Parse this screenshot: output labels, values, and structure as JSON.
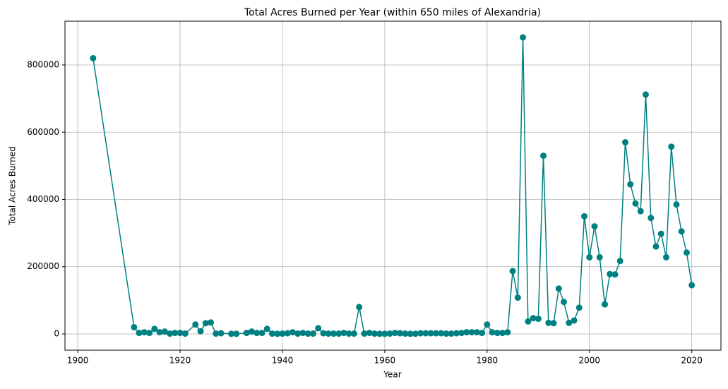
{
  "chart_data": {
    "type": "line",
    "title": "Total Acres Burned per Year (within 650 miles of Alexandria)",
    "x_label": "Year",
    "y_label": "Total Acres Burned",
    "x": [
      1903,
      1911,
      1912,
      1913,
      1914,
      1915,
      1916,
      1917,
      1918,
      1919,
      1920,
      1921,
      1923,
      1924,
      1925,
      1926,
      1927,
      1928,
      1930,
      1931,
      1933,
      1934,
      1935,
      1936,
      1937,
      1938,
      1939,
      1940,
      1941,
      1942,
      1943,
      1944,
      1945,
      1946,
      1947,
      1948,
      1949,
      1950,
      1951,
      1952,
      1953,
      1954,
      1955,
      1956,
      1957,
      1958,
      1959,
      1960,
      1961,
      1962,
      1963,
      1964,
      1965,
      1966,
      1967,
      1968,
      1969,
      1970,
      1971,
      1972,
      1973,
      1974,
      1975,
      1976,
      1977,
      1978,
      1979,
      1980,
      1981,
      1982,
      1983,
      1984,
      1985,
      1986,
      1987,
      1988,
      1989,
      1990,
      1991,
      1992,
      1993,
      1994,
      1995,
      1996,
      1997,
      1998,
      1999,
      2000,
      2001,
      2002,
      2003,
      2004,
      2005,
      2006,
      2007,
      2008,
      2009,
      2010,
      2011,
      2012,
      2013,
      2014,
      2015,
      2016,
      2017,
      2018,
      2019,
      2020
    ],
    "series": [
      {
        "name": "Total Acres Burned",
        "color": "#008080",
        "values": [
          820000,
          20000,
          3000,
          5000,
          3000,
          15000,
          5000,
          7000,
          1000,
          3000,
          3000,
          1000,
          28000,
          8000,
          32000,
          34000,
          1000,
          2000,
          500,
          500,
          3000,
          7000,
          3000,
          3000,
          15000,
          1000,
          500,
          1000,
          2000,
          5000,
          1000,
          3000,
          1000,
          1000,
          17000,
          2000,
          1000,
          1000,
          1000,
          3000,
          1000,
          1000,
          80000,
          1000,
          3000,
          1000,
          500,
          500,
          1000,
          3000,
          2000,
          1000,
          500,
          500,
          2000,
          2000,
          2000,
          2000,
          2000,
          1000,
          1000,
          2000,
          3000,
          5000,
          5000,
          5000,
          3000,
          28000,
          5000,
          3000,
          3000,
          5000,
          187000,
          108000,
          882000,
          37000,
          47000,
          45000,
          530000,
          33000,
          32000,
          135000,
          95000,
          33000,
          40000,
          78000,
          350000,
          228000,
          320000,
          228000,
          88000,
          178000,
          177000,
          217000,
          570000,
          445000,
          388000,
          365000,
          712000,
          345000,
          260000,
          298000,
          228000,
          557000,
          385000,
          305000,
          242000,
          145000
        ]
      }
    ],
    "xlim": [
      1897.5,
      2025.7
    ],
    "ylim": [
      -48300,
      930200
    ],
    "xticks": [
      1900,
      1920,
      1940,
      1960,
      1980,
      2000,
      2020
    ],
    "yticks": [
      0,
      200000,
      400000,
      600000,
      800000
    ],
    "grid": true
  }
}
